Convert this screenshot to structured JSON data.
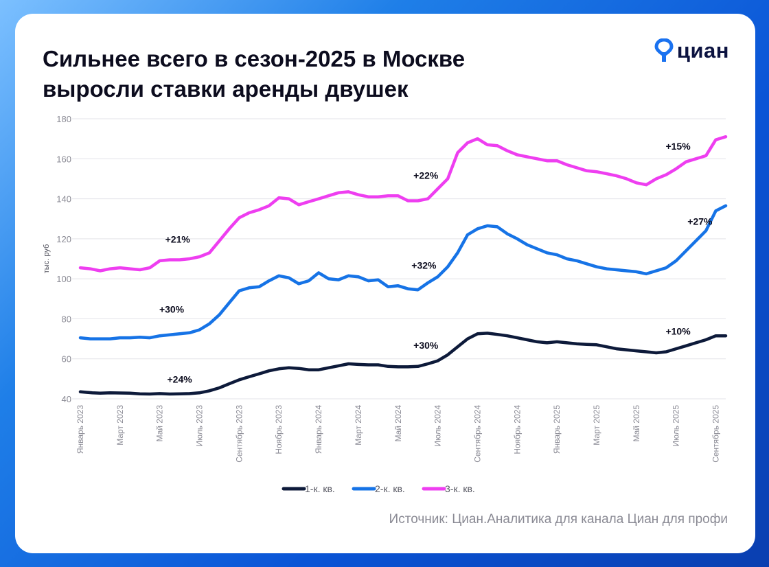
{
  "header": {
    "title": "Сильнее всего в сезон-2025 в Москве\nвыросли ставки аренды двушек",
    "logo_text": "циан"
  },
  "source_text": "Источник: Циан.Аналитика для канала Циан для профи",
  "colors": {
    "bg_start": "#7cc0ff",
    "bg_end": "#0a3fb0",
    "card": "#ffffff",
    "title": "#0c0c1e",
    "logo_blue": "#1a72f0",
    "logo_text": "#0c1340",
    "series_1k": "#0d1a3a",
    "series_2k": "#1673e6",
    "series_3k": "#ee3ef0",
    "grid": "#e3e3e8",
    "axis_text": "#8a8a94"
  },
  "chart_data": {
    "type": "line",
    "title": "Сильнее всего в сезон-2025 в Москве выросли ставки аренды двушек",
    "xlabel": "",
    "ylabel": "тыс. руб",
    "ylim": [
      40,
      180
    ],
    "yticks": [
      40,
      60,
      80,
      100,
      120,
      140,
      160,
      180
    ],
    "grid": true,
    "legend_position": "bottom-center",
    "x_month_index_range": [
      0,
      32.5
    ],
    "xtick_labels": [
      {
        "m": 0,
        "label": "Январь 2023"
      },
      {
        "m": 2,
        "label": "Март 2023"
      },
      {
        "m": 4,
        "label": "Май 2023"
      },
      {
        "m": 6,
        "label": "Июль 2023"
      },
      {
        "m": 8,
        "label": "Сентябрь 2023"
      },
      {
        "m": 10,
        "label": "Ноябрь 2023"
      },
      {
        "m": 12,
        "label": "Январь 2024"
      },
      {
        "m": 14,
        "label": "Март 2024"
      },
      {
        "m": 16,
        "label": "Май 2024"
      },
      {
        "m": 18,
        "label": "Июль 2024"
      },
      {
        "m": 20,
        "label": "Сентябрь 2024"
      },
      {
        "m": 22,
        "label": "Ноябрь 2024"
      },
      {
        "m": 24,
        "label": "Январь 2025"
      },
      {
        "m": 26,
        "label": "Март 2025"
      },
      {
        "m": 28,
        "label": "Май 2025"
      },
      {
        "m": 30,
        "label": "Июль 2025"
      },
      {
        "m": 32,
        "label": "Сентябрь 2025"
      }
    ],
    "series": [
      {
        "key": "s1",
        "name": "1-к. кв.",
        "color": "#0d1a3a",
        "points": [
          [
            0,
            43.5
          ],
          [
            0.6,
            43
          ],
          [
            1,
            42.8
          ],
          [
            1.5,
            43
          ],
          [
            2,
            42.9
          ],
          [
            2.5,
            42.8
          ],
          [
            3,
            42.5
          ],
          [
            3.5,
            42.4
          ],
          [
            4,
            42.6
          ],
          [
            4.5,
            42.4
          ],
          [
            5,
            42.5
          ],
          [
            5.5,
            42.6
          ],
          [
            6,
            43
          ],
          [
            6.5,
            44
          ],
          [
            7,
            45.5
          ],
          [
            7.5,
            47.5
          ],
          [
            8,
            49.5
          ],
          [
            8.5,
            51
          ],
          [
            9,
            52.5
          ],
          [
            9.5,
            54
          ],
          [
            10,
            55
          ],
          [
            10.5,
            55.5
          ],
          [
            11,
            55.2
          ],
          [
            11.5,
            54.5
          ],
          [
            12,
            54.5
          ],
          [
            12.5,
            55.5
          ],
          [
            13,
            56.5
          ],
          [
            13.5,
            57.5
          ],
          [
            14,
            57.2
          ],
          [
            14.5,
            57
          ],
          [
            15,
            57
          ],
          [
            15.5,
            56.2
          ],
          [
            16,
            56
          ],
          [
            16.5,
            56
          ],
          [
            17,
            56.2
          ],
          [
            17.5,
            57.5
          ],
          [
            18,
            59
          ],
          [
            18.5,
            62
          ],
          [
            19,
            66
          ],
          [
            19.5,
            70
          ],
          [
            20,
            72.5
          ],
          [
            20.5,
            72.8
          ],
          [
            21,
            72.2
          ],
          [
            21.5,
            71.5
          ],
          [
            22,
            70.5
          ],
          [
            22.5,
            69.5
          ],
          [
            23,
            68.5
          ],
          [
            23.5,
            68
          ],
          [
            24,
            68.5
          ],
          [
            24.5,
            68
          ],
          [
            25,
            67.5
          ],
          [
            25.5,
            67.2
          ],
          [
            26,
            67
          ],
          [
            26.5,
            66
          ],
          [
            27,
            65
          ],
          [
            27.5,
            64.5
          ],
          [
            28,
            64
          ],
          [
            28.5,
            63.5
          ],
          [
            29,
            63
          ],
          [
            29.5,
            63.5
          ],
          [
            30,
            65
          ],
          [
            30.5,
            66.5
          ],
          [
            31,
            68
          ],
          [
            31.5,
            69.5
          ],
          [
            32,
            71.5
          ],
          [
            32.5,
            71.5
          ]
        ],
        "annotations": [
          {
            "m": 5,
            "v": 48,
            "text": "+24%"
          },
          {
            "m": 17.4,
            "v": 65,
            "text": "+30%"
          },
          {
            "m": 30.1,
            "v": 72,
            "text": "+10%"
          }
        ]
      },
      {
        "key": "s2",
        "name": "2-к. кв.",
        "color": "#1673e6",
        "points": [
          [
            0,
            70.5
          ],
          [
            0.5,
            70
          ],
          [
            1,
            70
          ],
          [
            1.5,
            70
          ],
          [
            2,
            70.5
          ],
          [
            2.5,
            70.5
          ],
          [
            3,
            70.8
          ],
          [
            3.5,
            70.5
          ],
          [
            4,
            71.5
          ],
          [
            4.5,
            72
          ],
          [
            5,
            72.5
          ],
          [
            5.5,
            73
          ],
          [
            6,
            74.5
          ],
          [
            6.5,
            77.5
          ],
          [
            7,
            82
          ],
          [
            7.5,
            88
          ],
          [
            8,
            94
          ],
          [
            8.5,
            95.5
          ],
          [
            9,
            96
          ],
          [
            9.5,
            99
          ],
          [
            10,
            101.5
          ],
          [
            10.5,
            100.5
          ],
          [
            11,
            97.5
          ],
          [
            11.5,
            99
          ],
          [
            12,
            103
          ],
          [
            12.5,
            100
          ],
          [
            13,
            99.5
          ],
          [
            13.5,
            101.5
          ],
          [
            14,
            101
          ],
          [
            14.5,
            99
          ],
          [
            15,
            99.5
          ],
          [
            15.5,
            96
          ],
          [
            16,
            96.5
          ],
          [
            16.5,
            95
          ],
          [
            17,
            94.5
          ],
          [
            17.5,
            98
          ],
          [
            18,
            101
          ],
          [
            18.5,
            106
          ],
          [
            19,
            113
          ],
          [
            19.5,
            122
          ],
          [
            20,
            125
          ],
          [
            20.5,
            126.5
          ],
          [
            21,
            126
          ],
          [
            21.5,
            122.5
          ],
          [
            22,
            120
          ],
          [
            22.5,
            117
          ],
          [
            23,
            115
          ],
          [
            23.5,
            113
          ],
          [
            24,
            112
          ],
          [
            24.5,
            110
          ],
          [
            25,
            109
          ],
          [
            25.5,
            107.5
          ],
          [
            26,
            106
          ],
          [
            26.5,
            105
          ],
          [
            27,
            104.5
          ],
          [
            27.5,
            104
          ],
          [
            28,
            103.5
          ],
          [
            28.5,
            102.5
          ],
          [
            29,
            104
          ],
          [
            29.5,
            105.5
          ],
          [
            30,
            109
          ],
          [
            30.5,
            114
          ],
          [
            31,
            119
          ],
          [
            31.5,
            124
          ],
          [
            32,
            134
          ],
          [
            32.5,
            136.5
          ]
        ],
        "annotations": [
          {
            "m": 4.6,
            "v": 83,
            "text": "+30%"
          },
          {
            "m": 17.3,
            "v": 105,
            "text": "+32%"
          },
          {
            "m": 31.2,
            "v": 127,
            "text": "+27%"
          }
        ]
      },
      {
        "key": "s3",
        "name": "3-к. кв.",
        "color": "#ee3ef0",
        "points": [
          [
            0,
            105.5
          ],
          [
            0.5,
            105
          ],
          [
            1,
            104
          ],
          [
            1.5,
            105
          ],
          [
            2,
            105.5
          ],
          [
            2.5,
            105
          ],
          [
            3,
            104.5
          ],
          [
            3.5,
            105.5
          ],
          [
            4,
            109
          ],
          [
            4.5,
            109.5
          ],
          [
            5,
            109.5
          ],
          [
            5.5,
            110
          ],
          [
            6,
            111
          ],
          [
            6.5,
            113
          ],
          [
            7,
            119
          ],
          [
            7.5,
            125
          ],
          [
            8,
            130.5
          ],
          [
            8.5,
            133
          ],
          [
            9,
            134.5
          ],
          [
            9.5,
            136.5
          ],
          [
            10,
            140.5
          ],
          [
            10.5,
            140
          ],
          [
            11,
            137
          ],
          [
            11.5,
            138.5
          ],
          [
            12,
            140
          ],
          [
            12.5,
            141.5
          ],
          [
            13,
            143
          ],
          [
            13.5,
            143.5
          ],
          [
            14,
            142
          ],
          [
            14.5,
            141
          ],
          [
            15,
            141
          ],
          [
            15.5,
            141.5
          ],
          [
            16,
            141.5
          ],
          [
            16.5,
            139
          ],
          [
            17,
            139
          ],
          [
            17.5,
            140
          ],
          [
            18,
            145
          ],
          [
            18.5,
            150
          ],
          [
            19,
            163
          ],
          [
            19.5,
            168
          ],
          [
            20,
            170
          ],
          [
            20.5,
            167
          ],
          [
            21,
            166.5
          ],
          [
            21.5,
            164
          ],
          [
            22,
            162
          ],
          [
            22.5,
            161
          ],
          [
            23,
            160
          ],
          [
            23.5,
            159
          ],
          [
            24,
            159
          ],
          [
            24.5,
            157
          ],
          [
            25,
            155.5
          ],
          [
            25.5,
            154
          ],
          [
            26,
            153.5
          ],
          [
            26.5,
            152.5
          ],
          [
            27,
            151.5
          ],
          [
            27.5,
            150
          ],
          [
            28,
            148
          ],
          [
            28.5,
            147
          ],
          [
            29,
            150
          ],
          [
            29.5,
            152
          ],
          [
            30,
            155
          ],
          [
            30.5,
            158.5
          ],
          [
            31,
            160
          ],
          [
            31.5,
            161.5
          ],
          [
            32,
            169.5
          ],
          [
            32.5,
            171
          ]
        ],
        "annotations": [
          {
            "m": 4.9,
            "v": 118,
            "text": "+21%"
          },
          {
            "m": 17.4,
            "v": 150,
            "text": "+22%"
          },
          {
            "m": 30.1,
            "v": 164.5,
            "text": "+15%"
          }
        ]
      }
    ]
  }
}
